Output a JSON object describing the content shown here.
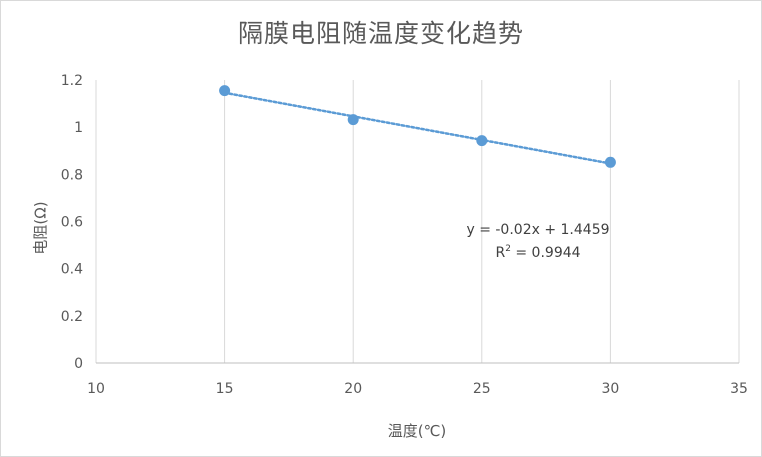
{
  "chart_data": {
    "type": "scatter",
    "title": "隔膜电阻随温度变化趋势",
    "xlabel": "温度(℃)",
    "ylabel": "电阻(Ω)",
    "xlim": [
      10,
      35
    ],
    "ylim": [
      0,
      1.2
    ],
    "x_ticks": [
      "10",
      "15",
      "20",
      "25",
      "30",
      "35"
    ],
    "y_ticks": [
      "0",
      "0.2",
      "0.4",
      "0.6",
      "0.8",
      "1",
      "1.2"
    ],
    "grid": {
      "vertical": true,
      "horizontal": false
    },
    "series": [
      {
        "x": [
          15,
          20,
          25,
          30
        ],
        "values": [
          1.155,
          1.032,
          0.943,
          0.851
        ],
        "color": "#5b9bd5"
      }
    ],
    "trendline": {
      "type": "linear",
      "slope": -0.02,
      "intercept": 1.4459,
      "x_range": [
        15,
        30
      ],
      "style": "dotted",
      "color": "#5b9bd5",
      "equation": "y = -0.02x + 1.4459",
      "r2_prefix": "R",
      "r2_exp": "2",
      "r2_value": " = 0.9944"
    }
  }
}
